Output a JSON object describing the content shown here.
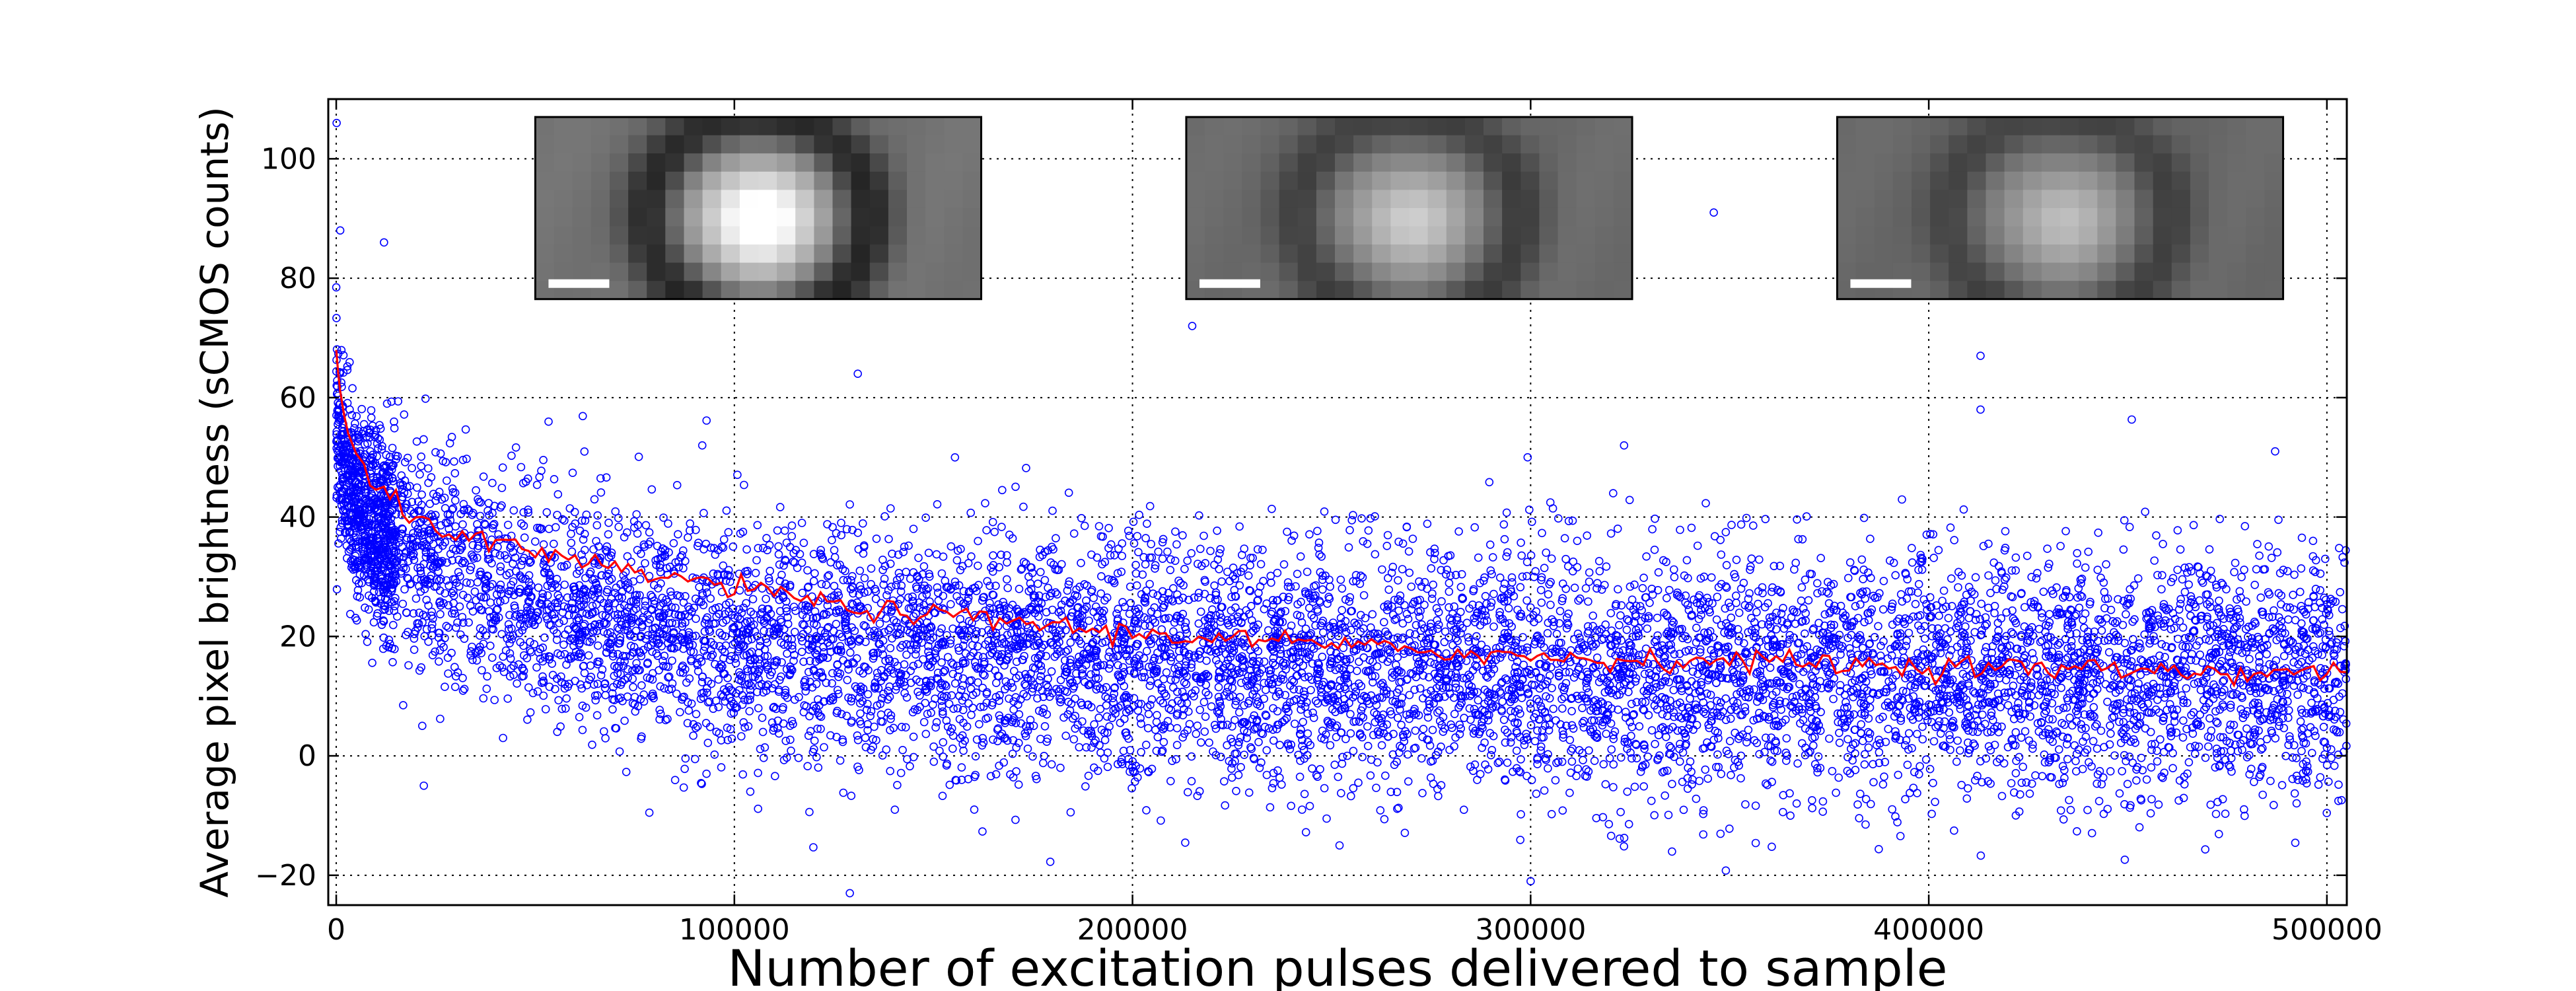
{
  "chart_data": {
    "type": "scatter",
    "title": "",
    "xlabel": "Number of excitation pulses delivered to sample",
    "ylabel": "Average pixel brightness (sCMOS counts)",
    "xlim": [
      -2000,
      505000
    ],
    "ylim": [
      -25,
      110
    ],
    "xticks": [
      0,
      100000,
      200000,
      300000,
      400000,
      500000
    ],
    "xtick_labels": [
      "0",
      "100000",
      "200000",
      "300000",
      "400000",
      "500000"
    ],
    "yticks": [
      -20,
      0,
      20,
      40,
      60,
      80,
      100
    ],
    "ytick_labels": [
      "−20",
      "0",
      "20",
      "40",
      "60",
      "80",
      "100"
    ],
    "grid": true,
    "grid_style": "dotted",
    "scatter_color": "#0000ff",
    "line_color": "#ff0000",
    "series": [
      {
        "kind": "scatter",
        "marker": "open-circle",
        "trend_model": {
          "a": 13.0,
          "b": 10.0,
          "tau1": 150000,
          "c": 48.0,
          "tau2": 2500,
          "spread_sd": 10.0
        },
        "outliers": [
          {
            "x": 100,
            "y": 106
          },
          {
            "x": 1000,
            "y": 88
          },
          {
            "x": 12000,
            "y": 86
          },
          {
            "x": 131000,
            "y": 64
          },
          {
            "x": 129000,
            "y": -23
          },
          {
            "x": 22000,
            "y": -5
          },
          {
            "x": 215000,
            "y": 72
          },
          {
            "x": 346000,
            "y": 91
          },
          {
            "x": 413000,
            "y": 67
          },
          {
            "x": 413000,
            "y": 58
          },
          {
            "x": 487000,
            "y": 51
          },
          {
            "x": 300000,
            "y": -21
          },
          {
            "x": 252000,
            "y": -15
          },
          {
            "x": 93000,
            "y": -3
          },
          {
            "x": 104000,
            "y": -6
          }
        ]
      },
      {
        "kind": "line",
        "points": [
          [
            0,
            68
          ],
          [
            500,
            64
          ],
          [
            1000,
            61
          ],
          [
            2000,
            57
          ],
          [
            3000,
            54
          ],
          [
            5000,
            50
          ],
          [
            7000,
            47
          ],
          [
            10000,
            44
          ],
          [
            12000,
            45
          ],
          [
            15000,
            42
          ],
          [
            20000,
            40
          ],
          [
            25000,
            39
          ],
          [
            30000,
            37
          ],
          [
            35000,
            36
          ],
          [
            40000,
            35
          ],
          [
            45000,
            35
          ],
          [
            50000,
            34
          ],
          [
            55000,
            33
          ],
          [
            60000,
            32
          ],
          [
            65000,
            32
          ],
          [
            70000,
            31
          ],
          [
            75000,
            31
          ],
          [
            80000,
            30
          ],
          [
            85000,
            30
          ],
          [
            90000,
            29
          ],
          [
            95000,
            29
          ],
          [
            100000,
            28
          ],
          [
            105000,
            28
          ],
          [
            110000,
            27
          ],
          [
            115000,
            27
          ],
          [
            120000,
            26
          ],
          [
            125000,
            25
          ],
          [
            130000,
            25
          ],
          [
            140000,
            24
          ],
          [
            150000,
            23.5
          ],
          [
            160000,
            23
          ],
          [
            170000,
            22.5
          ],
          [
            180000,
            22
          ],
          [
            190000,
            21
          ],
          [
            200000,
            20.5
          ],
          [
            210000,
            20
          ],
          [
            220000,
            20
          ],
          [
            230000,
            19.5
          ],
          [
            240000,
            19
          ],
          [
            250000,
            18.5
          ],
          [
            260000,
            18
          ],
          [
            270000,
            18
          ],
          [
            280000,
            17.5
          ],
          [
            290000,
            17
          ],
          [
            300000,
            16.5
          ],
          [
            310000,
            16.5
          ],
          [
            320000,
            16
          ],
          [
            330000,
            16
          ],
          [
            340000,
            16
          ],
          [
            350000,
            16
          ],
          [
            360000,
            16
          ],
          [
            370000,
            15.5
          ],
          [
            380000,
            15.5
          ],
          [
            390000,
            15
          ],
          [
            400000,
            15
          ],
          [
            410000,
            15
          ],
          [
            420000,
            15
          ],
          [
            430000,
            14.5
          ],
          [
            440000,
            14.5
          ],
          [
            450000,
            14.5
          ],
          [
            460000,
            14.5
          ],
          [
            470000,
            14
          ],
          [
            480000,
            14
          ],
          [
            490000,
            14
          ],
          [
            500000,
            14
          ],
          [
            505000,
            14
          ]
        ]
      }
    ],
    "insets": [
      {
        "name": "inset-frame-1",
        "x_start": 50000,
        "x_end": 162000,
        "y_top": 107,
        "y_bottom": 76.5,
        "peak_brightness": 1.0,
        "background_gray": 0.45
      },
      {
        "name": "inset-frame-2",
        "x_start": 213500,
        "x_end": 325500,
        "y_top": 107,
        "y_bottom": 76.5,
        "peak_brightness": 0.6,
        "background_gray": 0.42
      },
      {
        "name": "inset-frame-3",
        "x_start": 377000,
        "x_end": 489000,
        "y_top": 107,
        "y_bottom": 76.5,
        "peak_brightness": 0.52,
        "background_gray": 0.41
      }
    ]
  }
}
